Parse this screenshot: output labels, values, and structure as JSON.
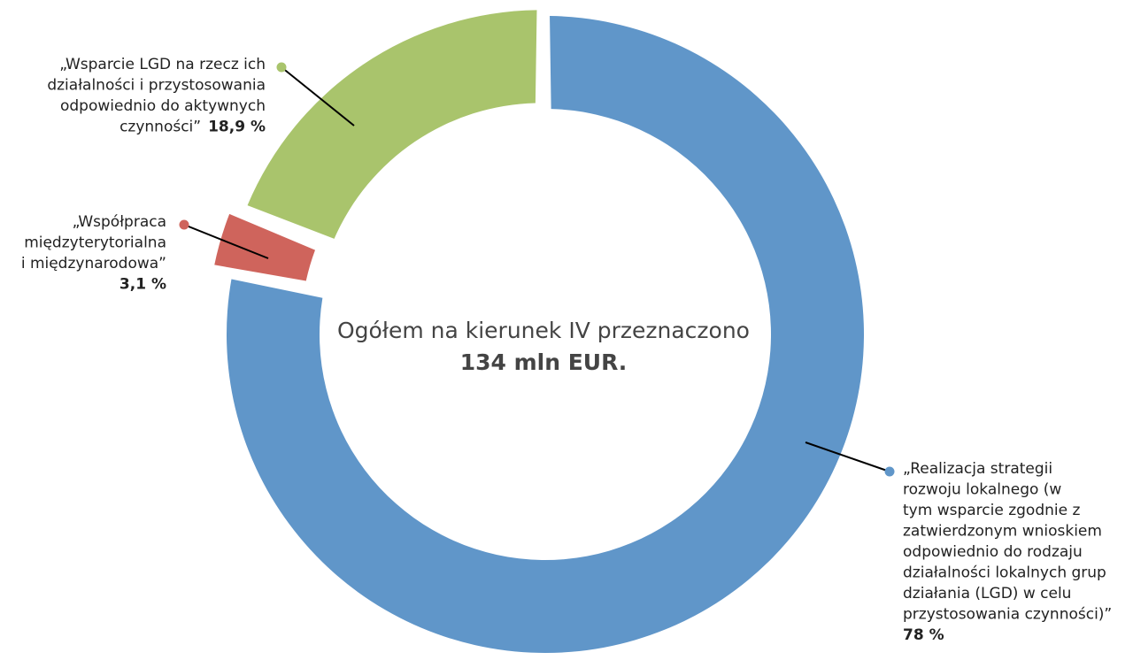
{
  "chart_data": {
    "type": "donut",
    "categories": [
      [
        "„Realizacja strategii",
        "rozwoju lokalnego (w",
        "tym wsparcie zgodnie z",
        "zatwierdzonym wnioskiem",
        "odpowiednio do rodzaju",
        "działalności lokalnych grup",
        "działania (LGD) w celu",
        "przystosowania czynności)”"
      ],
      [
        "„Współpraca",
        "międzyterytorialna",
        "i międzynarodowa”"
      ],
      [
        "„Wsparcie LGD na rzecz ich",
        "działalności i przystosowania",
        "odpowiednio do aktywnych",
        "czynności”"
      ]
    ],
    "values": [
      78,
      3.1,
      18.9
    ],
    "value_labels": [
      "78 %",
      "3,1 %",
      "18,9 %"
    ],
    "colors": [
      "#6096c9",
      "#cf645c",
      "#a9c46c"
    ],
    "annotations": [
      "Ogółem na kierunek IV przeznaczono",
      "134 mln EUR."
    ]
  }
}
